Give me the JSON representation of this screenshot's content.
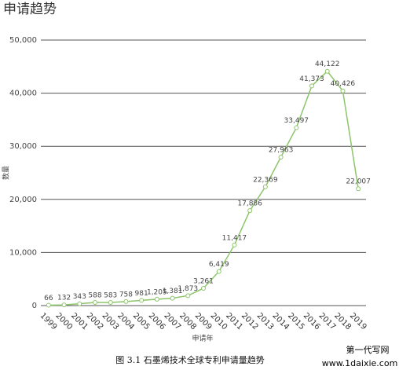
{
  "chart_data": {
    "type": "line",
    "title": "申请趋势",
    "x_label": "申请年",
    "y_label": "数量",
    "categories": [
      "1999",
      "2000",
      "2001",
      "2002",
      "2003",
      "2004",
      "2005",
      "2006",
      "2007",
      "2008",
      "2009",
      "2010",
      "2011",
      "2012",
      "2013",
      "2014",
      "2015",
      "2016",
      "2017",
      "2018",
      "2019"
    ],
    "values": [
      66,
      132,
      343,
      588,
      583,
      758,
      981,
      1205,
      1381,
      1873,
      3261,
      6419,
      11417,
      17886,
      22369,
      27963,
      33497,
      41373,
      44122,
      40426,
      22007
    ],
    "value_labels": [
      "66",
      "132",
      "343",
      "588",
      "583",
      "758",
      "981",
      "1,205",
      "1,381",
      "1,873",
      "3,261",
      "6,419",
      "11,417",
      "17,886",
      "22,369",
      "27,963",
      "33,497",
      "41,373",
      "44,122",
      "40,426",
      "22,007"
    ],
    "color": "#8cc56a",
    "ylim": [
      0,
      50000
    ],
    "yticks": [
      0,
      {
        "value": 10000,
        "label": "10,000"
      },
      {
        "value": 20000,
        "label": "20,000"
      },
      {
        "value": 30000,
        "label": "30,000"
      },
      {
        "value": 40000,
        "label": "40,000"
      },
      {
        "value": 50000,
        "label": "50,000"
      }
    ],
    "grid": true
  },
  "caption": "图 3.1  石墨烯技术全球专利申请量趋势",
  "watermark": {
    "name": "第一代写网",
    "url": "www.1daixie.com"
  }
}
